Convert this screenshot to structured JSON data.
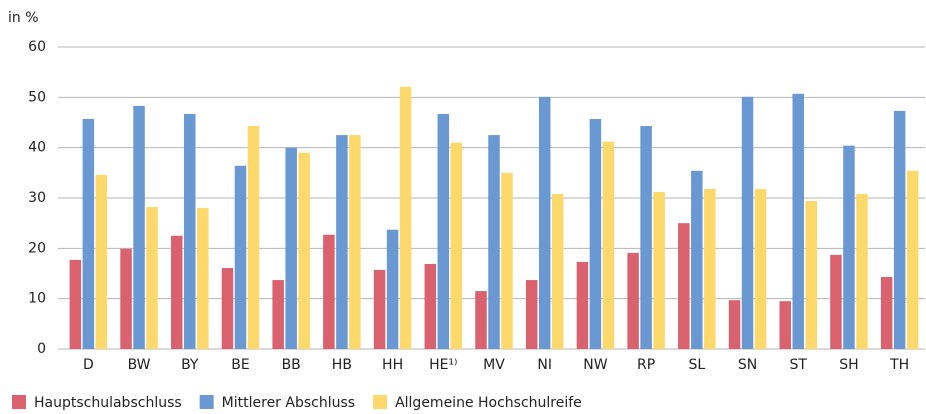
{
  "chart_data": {
    "type": "bar",
    "y_label": "in %",
    "categories": [
      "D",
      "BW",
      "BY",
      "BE",
      "BB",
      "HB",
      "HH",
      "HE¹⁾",
      "MV",
      "NI",
      "NW",
      "RP",
      "SL",
      "SN",
      "ST",
      "SH",
      "TH"
    ],
    "series": [
      {
        "name": "Hauptschulabschluss",
        "color": "#d9626e",
        "values": [
          17.7,
          19.9,
          22.5,
          16.1,
          13.7,
          22.7,
          15.7,
          16.9,
          11.5,
          13.7,
          17.3,
          19.1,
          25.0,
          9.7,
          9.5,
          18.7,
          14.3
        ]
      },
      {
        "name": "Mittlerer Abschluss",
        "color": "#6a98d2",
        "values": [
          45.7,
          48.3,
          46.7,
          36.4,
          40.0,
          42.5,
          23.7,
          46.7,
          42.5,
          50.1,
          45.7,
          44.3,
          35.4,
          50.1,
          50.7,
          40.4,
          47.3
        ]
      },
      {
        "name": "Allgemeine Hochschulreife",
        "color": "#fdd86a",
        "values": [
          34.6,
          28.2,
          28.0,
          44.3,
          39.0,
          42.5,
          52.1,
          41.0,
          35.0,
          30.8,
          41.2,
          31.2,
          31.8,
          31.8,
          29.4,
          30.8,
          35.4
        ]
      }
    ],
    "ylim": [
      0,
      60
    ],
    "yticks": [
      0,
      10,
      20,
      30,
      40,
      50,
      60
    ],
    "grid": true,
    "legend": "bottom"
  }
}
